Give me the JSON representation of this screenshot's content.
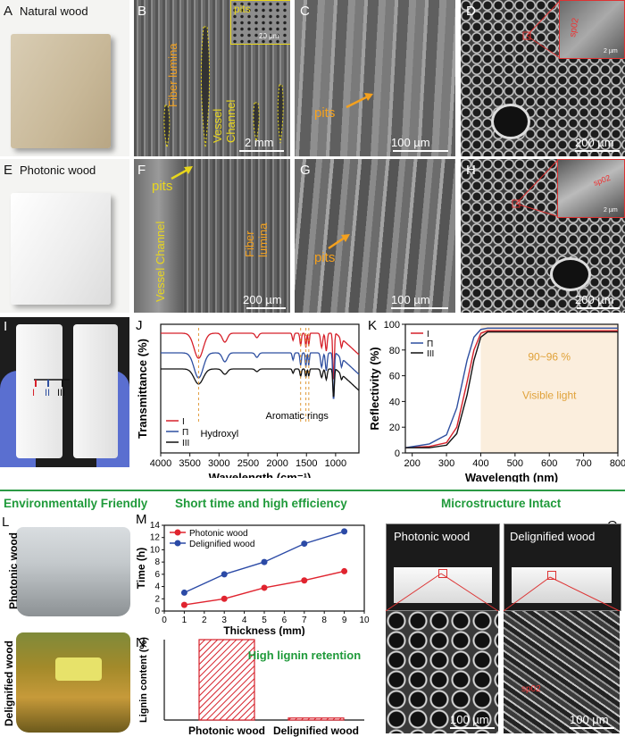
{
  "row1": {
    "A": {
      "letter": "A",
      "title": "Natural wood"
    },
    "B": {
      "letter": "B",
      "fiber": "Fiber lumina",
      "vessel": "Vessel Channel",
      "pits": "pits",
      "inset_scale": "20 µm",
      "scale": "2 mm"
    },
    "C": {
      "letter": "C",
      "pits": "pits",
      "scale": "100 µm"
    },
    "D": {
      "letter": "D",
      "inset_scale": "2 µm",
      "scale": "200 µm"
    }
  },
  "row2": {
    "E": {
      "letter": "E",
      "title": "Photonic wood"
    },
    "F": {
      "letter": "F",
      "pits": "pits",
      "vessel": "Vessel Channel",
      "fiber": "Fiber lumina",
      "scale": "200 µm"
    },
    "G": {
      "letter": "G",
      "pits": "pits",
      "scale": "100 µm"
    },
    "H": {
      "letter": "H",
      "inset_scale": "2 µm",
      "scale": "200 µm"
    }
  },
  "row3": {
    "I": {
      "letter": "I",
      "marks": [
        "I",
        "II",
        "III"
      ]
    },
    "J": {
      "letter": "J"
    },
    "K": {
      "letter": "K"
    }
  },
  "row4": {
    "header_left": "Environmentally Friendly",
    "header_mid": "Short time and high efficiency",
    "header_right": "Microstructure Intact",
    "L": {
      "letter": "L",
      "top_label": "Photonic wood",
      "bottom_label": "Delignified wood"
    },
    "M": {
      "letter": "M"
    },
    "N": {
      "letter": "N"
    },
    "O": {
      "letter": "O",
      "left_label": "Photonic wood",
      "right_label": "Delignified wood",
      "scale_left": "100 µm",
      "scale_right": "100 µm"
    }
  },
  "chart_data": [
    {
      "id": "J",
      "type": "line",
      "title": "",
      "xlabel": "Wavelength (cm⁻¹)",
      "ylabel": "Transmittance (%)",
      "xlim": [
        4000,
        600
      ],
      "x_ticks": [
        4000,
        3500,
        3000,
        2500,
        2000,
        1500,
        1000
      ],
      "series": [
        {
          "name": "I",
          "color": "#d6202a"
        },
        {
          "name": "Π",
          "color": "#2e4fa0"
        },
        {
          "name": "III",
          "color": "#111111"
        }
      ],
      "annotations": [
        "Hydroxyl",
        "Aromatic rings"
      ]
    },
    {
      "id": "K",
      "type": "line",
      "title": "",
      "xlabel": "Wavelength (nm)",
      "ylabel": "Reflectivity (%)",
      "xlim": [
        180,
        800
      ],
      "ylim": [
        0,
        100
      ],
      "x_ticks": [
        200,
        300,
        400,
        500,
        600,
        700,
        800
      ],
      "y_ticks": [
        0,
        20,
        40,
        60,
        80,
        100
      ],
      "series": [
        {
          "name": "I",
          "color": "#d6202a",
          "x": [
            180,
            250,
            300,
            330,
            360,
            380,
            400,
            420,
            450,
            500,
            600,
            800
          ],
          "y": [
            4,
            5,
            8,
            20,
            55,
            80,
            93,
            95,
            95,
            95,
            95,
            95
          ]
        },
        {
          "name": "Π",
          "color": "#2e4fa0",
          "x": [
            180,
            250,
            300,
            330,
            360,
            380,
            400,
            420,
            450,
            500,
            600,
            800
          ],
          "y": [
            4,
            7,
            14,
            35,
            72,
            90,
            96,
            97,
            97,
            97,
            97,
            97
          ]
        },
        {
          "name": "III",
          "color": "#111111",
          "x": [
            180,
            250,
            300,
            330,
            360,
            380,
            400,
            420,
            450,
            500,
            600,
            800
          ],
          "y": [
            4,
            4,
            6,
            15,
            45,
            72,
            90,
            94,
            94,
            94,
            94,
            94
          ]
        }
      ],
      "annotations": [
        "90~96 %",
        "Visible light"
      ],
      "highlight_range": [
        400,
        800
      ]
    },
    {
      "id": "M",
      "type": "line",
      "title": "",
      "xlabel": "Thickness (mm)",
      "ylabel": "Time (h)",
      "xlim": [
        0,
        10
      ],
      "ylim": [
        0,
        14
      ],
      "x_ticks": [
        0,
        1,
        2,
        3,
        4,
        5,
        6,
        7,
        8,
        9,
        10
      ],
      "y_ticks": [
        0,
        2,
        4,
        6,
        8,
        10,
        12,
        14
      ],
      "series": [
        {
          "name": "Photonic wood",
          "color": "#e0242f",
          "x": [
            1,
            3,
            5,
            7,
            9
          ],
          "y": [
            1,
            2,
            3.8,
            5,
            6.5
          ]
        },
        {
          "name": "Delignified wood",
          "color": "#2b4aa6",
          "x": [
            1,
            3,
            5,
            7,
            9
          ],
          "y": [
            3,
            6,
            8,
            11,
            13
          ]
        }
      ]
    },
    {
      "id": "N",
      "type": "bar",
      "title": "",
      "xlabel": "",
      "ylabel": "Lignin content (%)",
      "categories": [
        "Photonic wood",
        "Delignified wood"
      ],
      "values": [
        80,
        2
      ],
      "ylim": [
        0,
        80
      ],
      "annotation": "High lignin retention"
    }
  ]
}
